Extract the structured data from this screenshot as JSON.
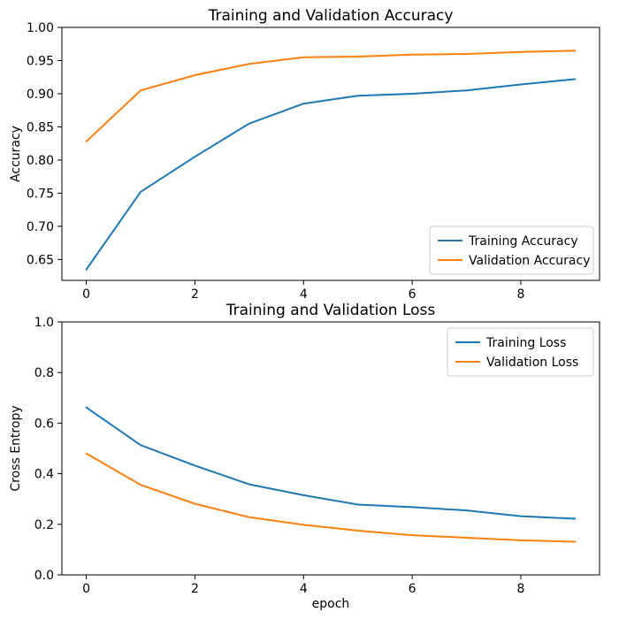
{
  "colors": {
    "background": "#ffffff",
    "axes": "#000000",
    "legend_border": "#cccccc",
    "train_color": "#1f77b4",
    "val_color": "#ff7f0e"
  },
  "chart_data": [
    {
      "type": "line",
      "title": "Training and Validation Accuracy",
      "xlabel": "",
      "ylabel": "Accuracy",
      "x": [
        0,
        1,
        2,
        3,
        4,
        5,
        6,
        7,
        8,
        9
      ],
      "xlim": [
        -0.45,
        9.45
      ],
      "ylim": [
        0.6185,
        1.0
      ],
      "grid": false,
      "xticks": {
        "values": [
          0,
          2,
          4,
          6,
          8
        ],
        "labels": [
          "0",
          "2",
          "4",
          "6",
          "8"
        ]
      },
      "yticks": {
        "values": [
          0.65,
          0.7,
          0.75,
          0.8,
          0.85,
          0.9,
          0.95,
          1.0
        ],
        "labels": [
          "0.65",
          "0.70",
          "0.75",
          "0.80",
          "0.85",
          "0.90",
          "0.95",
          "1.00"
        ]
      },
      "series": [
        {
          "name": "Training Accuracy",
          "color": "#1f77b4",
          "values": [
            0.635,
            0.752,
            0.805,
            0.855,
            0.885,
            0.897,
            0.9,
            0.905,
            0.914,
            0.922
          ]
        },
        {
          "name": "Validation Accuracy",
          "color": "#ff7f0e",
          "values": [
            0.828,
            0.905,
            0.928,
            0.945,
            0.955,
            0.956,
            0.959,
            0.96,
            0.963,
            0.965
          ]
        }
      ],
      "legend": {
        "position": "lower right",
        "entries": [
          "Training Accuracy",
          "Validation Accuracy"
        ]
      }
    },
    {
      "type": "line",
      "title": "Training and Validation Loss",
      "xlabel": "epoch",
      "ylabel": "Cross Entropy",
      "x": [
        0,
        1,
        2,
        3,
        4,
        5,
        6,
        7,
        8,
        9
      ],
      "xlim": [
        -0.45,
        9.45
      ],
      "ylim": [
        0.0,
        1.0
      ],
      "grid": false,
      "xticks": {
        "values": [
          0,
          2,
          4,
          6,
          8
        ],
        "labels": [
          "0",
          "2",
          "4",
          "6",
          "8"
        ]
      },
      "yticks": {
        "values": [
          0.0,
          0.2,
          0.4,
          0.6,
          0.8,
          1.0
        ],
        "labels": [
          "0.0",
          "0.2",
          "0.4",
          "0.6",
          "0.8",
          "1.0"
        ]
      },
      "series": [
        {
          "name": "Training Loss",
          "color": "#1f77b4",
          "values": [
            0.662,
            0.513,
            0.432,
            0.358,
            0.315,
            0.278,
            0.268,
            0.255,
            0.232,
            0.222
          ]
        },
        {
          "name": "Validation Loss",
          "color": "#ff7f0e",
          "values": [
            0.48,
            0.356,
            0.281,
            0.228,
            0.198,
            0.175,
            0.157,
            0.147,
            0.137,
            0.131
          ]
        }
      ],
      "legend": {
        "position": "upper right",
        "entries": [
          "Training Loss",
          "Validation Loss"
        ]
      }
    }
  ]
}
